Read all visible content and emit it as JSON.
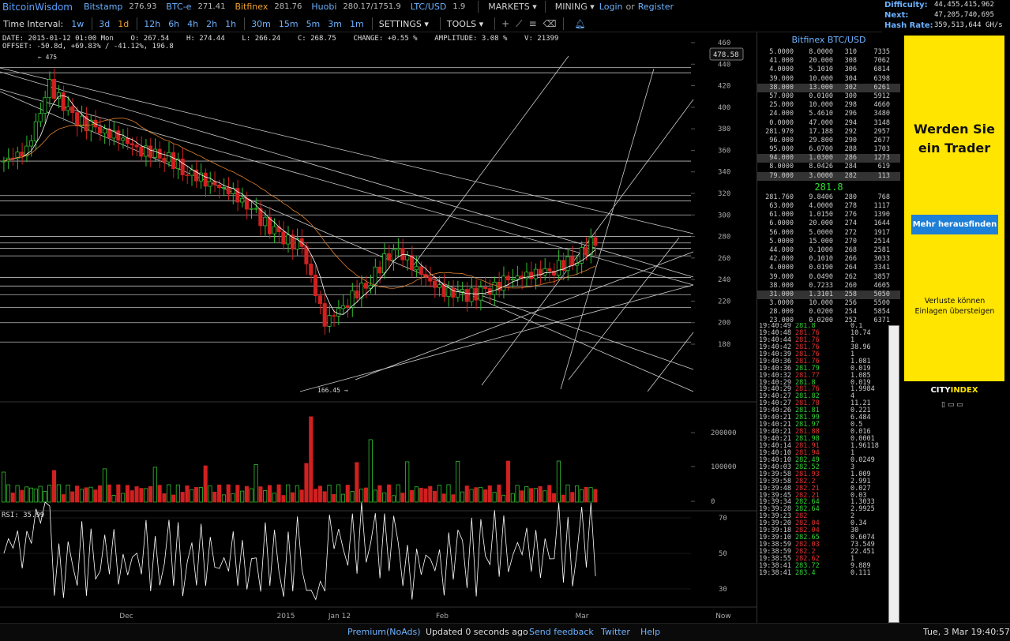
{
  "topbar": {
    "brand": "BitcoinWisdom",
    "exchanges": [
      {
        "name": "Bitstamp",
        "price": "276.93"
      },
      {
        "name": "BTC-e",
        "price": "271.41"
      },
      {
        "name": "Bitfinex",
        "price": "281.76"
      },
      {
        "name": "Huobi",
        "price": "280.17/1751.9"
      },
      {
        "name": "LTC/USD",
        "price": "1.9"
      }
    ],
    "markets": "MARKETS",
    "mining": "MINING",
    "login": "Login",
    "or": "or",
    "register": "Register"
  },
  "stats": {
    "difficulty_label": "Difficulty:",
    "difficulty": "44,455,415,962",
    "next_label": "Next:",
    "next": "47,205,740,695",
    "hashrate_label": "Hash Rate:",
    "hashrate": "359,513,644 GH/s"
  },
  "toolbar": {
    "interval_label": "Time Interval:",
    "intervals": [
      "1w",
      "3d",
      "1d",
      "12h",
      "6h",
      "4h",
      "2h",
      "1h",
      "30m",
      "15m",
      "5m",
      "3m",
      "1m"
    ],
    "selected": "1d",
    "settings": "SETTINGS",
    "tools": "TOOLS"
  },
  "chart": {
    "info_line1": "DATE: 2015-01-12 01:00 Mon    O: 267.54    H: 274.44    L: 266.24    C: 268.75    CHANGE: +0.55 %    AMPLITUDE: 3.08 %    V: 21399",
    "info_line2": "OFFSET: -50.8d, +69.83% / -41.12%, 196.8",
    "current_price_box": "478.58",
    "high_marker": "← 475",
    "low_marker": "166.45 →",
    "price_ticks": [
      "460",
      "440",
      "420",
      "400",
      "380",
      "360",
      "340",
      "320",
      "300",
      "280",
      "260",
      "240",
      "220",
      "200",
      "180"
    ],
    "volume_ticks": [
      "200000",
      "100000",
      "0"
    ],
    "rsi_label": "RSI: 35.99",
    "rsi_ticks": [
      "70",
      "50",
      "30"
    ],
    "x_labels": [
      "Dec",
      "2015",
      "Jan 12",
      "Feb",
      "Mar",
      "Now"
    ]
  },
  "book": {
    "title": "Bitfinex BTC/USD",
    "asks": [
      [
        "5.0000",
        "8.0000",
        "310",
        "7335"
      ],
      [
        "41.000",
        "20.000",
        "308",
        "7062"
      ],
      [
        "4.0000",
        "5.1010",
        "306",
        "6814"
      ],
      [
        "39.000",
        "10.000",
        "304",
        "6398"
      ],
      [
        "38.000",
        "13.000",
        "302",
        "6261"
      ],
      [
        "57.000",
        "0.0100",
        "300",
        "5912"
      ],
      [
        "25.000",
        "10.000",
        "298",
        "4660"
      ],
      [
        "24.000",
        "5.4610",
        "296",
        "3480"
      ],
      [
        "0.0000",
        "47.000",
        "294",
        "3148"
      ],
      [
        "281.970",
        "17.188",
        "292",
        "2957"
      ],
      [
        "96.000",
        "29.800",
        "290",
        "2677"
      ],
      [
        "95.000",
        "6.0700",
        "288",
        "1703"
      ],
      [
        "94.000",
        "1.0300",
        "286",
        "1273"
      ],
      [
        "8.0000",
        "8.0426",
        "284",
        "619"
      ],
      [
        "79.000",
        "3.0000",
        "282",
        "113"
      ]
    ],
    "mid": "281.8",
    "bids": [
      [
        "281.760",
        "9.8406",
        "280",
        "768"
      ],
      [
        "63.000",
        "4.0000",
        "278",
        "1117"
      ],
      [
        "61.000",
        "1.0150",
        "276",
        "1390"
      ],
      [
        "6.0000",
        "20.000",
        "274",
        "1644"
      ],
      [
        "56.000",
        "5.0000",
        "272",
        "1917"
      ],
      [
        "5.0000",
        "15.000",
        "270",
        "2514"
      ],
      [
        "44.000",
        "0.1000",
        "268",
        "2581"
      ],
      [
        "42.000",
        "0.1010",
        "266",
        "3033"
      ],
      [
        "4.0000",
        "0.0190",
        "264",
        "3341"
      ],
      [
        "39.000",
        "0.0490",
        "262",
        "3857"
      ],
      [
        "38.000",
        "0.7233",
        "260",
        "4605"
      ],
      [
        "31.000",
        "1.3101",
        "258",
        "5050"
      ],
      [
        "3.0000",
        "10.000",
        "256",
        "5500"
      ],
      [
        "28.000",
        "0.0200",
        "254",
        "5854"
      ],
      [
        "23.000",
        "0.0200",
        "252",
        "6371"
      ]
    ],
    "trades": [
      [
        "19:40:49",
        "281.8",
        "0.1",
        "g"
      ],
      [
        "19:40:48",
        "281.76",
        "10.74",
        "r"
      ],
      [
        "19:40:44",
        "281.76",
        "1",
        "r"
      ],
      [
        "19:40:42",
        "281.76",
        "38.96",
        "r"
      ],
      [
        "19:40:39",
        "281.76",
        "1",
        "r"
      ],
      [
        "19:40:36",
        "281.76",
        "1.081",
        "r"
      ],
      [
        "19:40:36",
        "281.79",
        "0.019",
        "g"
      ],
      [
        "19:40:32",
        "281.77",
        "1.085",
        "r"
      ],
      [
        "19:40:29",
        "281.8",
        "0.019",
        "g"
      ],
      [
        "19:40:29",
        "281.76",
        "1.9984",
        "r"
      ],
      [
        "19:40:27",
        "281.82",
        "4",
        "g"
      ],
      [
        "19:40:27",
        "281.78",
        "11.21",
        "r"
      ],
      [
        "19:40:26",
        "281.81",
        "0.221",
        "g"
      ],
      [
        "19:40:21",
        "281.99",
        "6.484",
        "g"
      ],
      [
        "19:40:21",
        "281.97",
        "0.5",
        "g"
      ],
      [
        "19:40:21",
        "281.88",
        "0.016",
        "r"
      ],
      [
        "19:40:21",
        "281.98",
        "0.0001",
        "g"
      ],
      [
        "19:40:14",
        "281.91",
        "1.96118",
        "r"
      ],
      [
        "19:40:10",
        "281.94",
        "1",
        "r"
      ],
      [
        "19:40:10",
        "282.49",
        "0.0249",
        "g"
      ],
      [
        "19:40:03",
        "282.52",
        "3",
        "g"
      ],
      [
        "19:39:58",
        "281.93",
        "1.009",
        "r"
      ],
      [
        "19:39:58",
        "282.2",
        "2.991",
        "r"
      ],
      [
        "19:39:48",
        "282.21",
        "0.027",
        "r"
      ],
      [
        "19:39:45",
        "282.21",
        "0.03",
        "r"
      ],
      [
        "19:39:34",
        "282.64",
        "1.3033",
        "g"
      ],
      [
        "19:39:28",
        "282.64",
        "2.9925",
        "g"
      ],
      [
        "19:39:23",
        "282",
        "2",
        "r"
      ],
      [
        "19:39:20",
        "282.04",
        "0.34",
        "r"
      ],
      [
        "19:39:18",
        "282.04",
        "30",
        "r"
      ],
      [
        "19:39:10",
        "282.65",
        "0.6074",
        "g"
      ],
      [
        "19:38:59",
        "282.03",
        "73.549",
        "r"
      ],
      [
        "19:38:59",
        "282.2",
        "22.451",
        "r"
      ],
      [
        "19:38:55",
        "282.62",
        "1",
        "r"
      ],
      [
        "19:38:41",
        "283.72",
        "9.889",
        "g"
      ],
      [
        "19:38:41",
        "283.4",
        "0.111",
        "g"
      ]
    ]
  },
  "ad": {
    "headline": "Werden Sie ein Trader",
    "button": "Mehr herausfinden",
    "disclaimer": "Verluste können Einlagen übersteigen",
    "logo_a": "CITY",
    "logo_b": "INDEX"
  },
  "footer": {
    "premium": "Premium(NoAds)",
    "updated": "Updated 0 seconds ago",
    "feedback": "Send feedback",
    "twitter": "Twitter",
    "help": "Help",
    "datetime": "Tue, 3 Mar 19:40:57"
  },
  "colors": {
    "up": "#30c030",
    "down": "#d02020",
    "accent": "#6cb2ff",
    "active": "#f0a030"
  },
  "chart_data": {
    "type": "candlestick",
    "title": "Bitfinex BTC/USD",
    "interval": "1d",
    "ylim": [
      170,
      470
    ],
    "x_labels": [
      "Dec",
      "2015",
      "Jan 12",
      "Feb",
      "Mar",
      "Now"
    ],
    "close_path_approx": [
      350,
      360,
      420,
      390,
      380,
      372,
      360,
      355,
      340,
      330,
      320,
      300,
      280,
      270,
      200,
      220,
      240,
      270,
      250,
      230,
      225,
      228,
      240,
      245,
      250,
      260,
      282
    ]
  }
}
